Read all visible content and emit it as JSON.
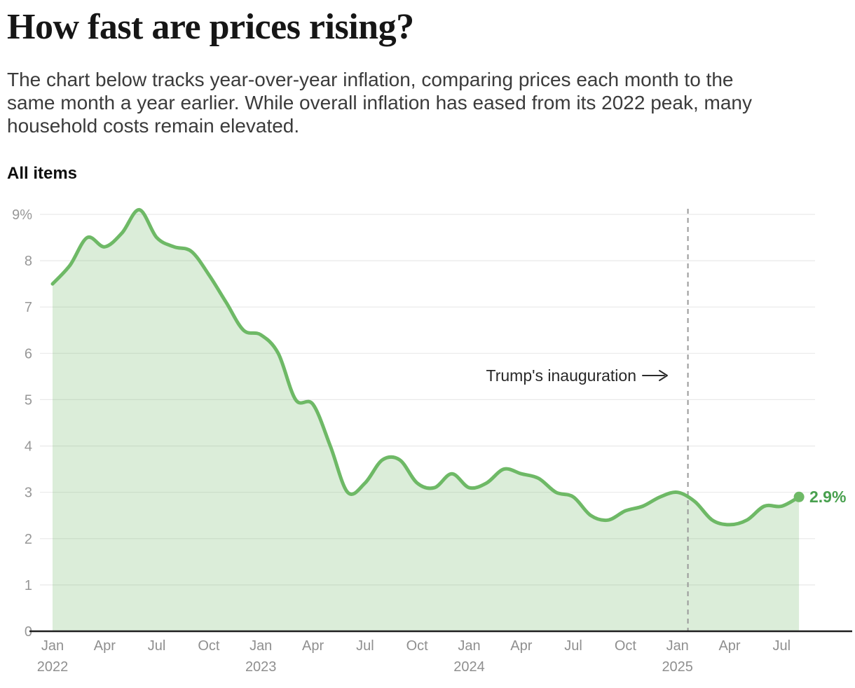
{
  "page": {
    "title": "How fast are prices rising?",
    "subtitle_lines": [
      "The chart below tracks year-over-year inflation, comparing prices each month to the",
      "same month a year earlier. While overall inflation has eased from its 2022 peak, many",
      "household costs remain elevated."
    ]
  },
  "chart_data": {
    "type": "area",
    "title": "All items",
    "unit": "percent, year-over-year",
    "x_monthly_start": "Jan 2022",
    "x_monthly_end": "Aug 2025",
    "series": [
      {
        "name": "All items",
        "values": [
          7.5,
          7.9,
          8.5,
          8.3,
          8.6,
          9.1,
          8.5,
          8.3,
          8.2,
          7.7,
          7.1,
          6.5,
          6.4,
          6.0,
          5.0,
          4.9,
          4.0,
          3.0,
          3.2,
          3.7,
          3.7,
          3.2,
          3.1,
          3.4,
          3.1,
          3.2,
          3.5,
          3.4,
          3.3,
          3.0,
          2.9,
          2.5,
          2.4,
          2.6,
          2.7,
          2.9,
          3.0,
          2.8,
          2.4,
          2.3,
          2.4,
          2.7,
          2.7,
          2.9
        ]
      }
    ],
    "ylim": [
      0,
      9
    ],
    "grid": true,
    "legend": "none",
    "y_ticks": [
      {
        "v": 9,
        "label": "9%"
      },
      {
        "v": 8,
        "label": "8"
      },
      {
        "v": 7,
        "label": "7"
      },
      {
        "v": 6,
        "label": "6"
      },
      {
        "v": 5,
        "label": "5"
      },
      {
        "v": 4,
        "label": "4"
      },
      {
        "v": 3,
        "label": "3"
      },
      {
        "v": 2,
        "label": "2"
      },
      {
        "v": 1,
        "label": "1"
      },
      {
        "v": 0,
        "label": "0"
      }
    ],
    "x_ticks": [
      {
        "i": 0,
        "month": "Jan",
        "year": "2022"
      },
      {
        "i": 3,
        "month": "Apr"
      },
      {
        "i": 6,
        "month": "Jul"
      },
      {
        "i": 9,
        "month": "Oct"
      },
      {
        "i": 12,
        "month": "Jan",
        "year": "2023"
      },
      {
        "i": 15,
        "month": "Apr"
      },
      {
        "i": 18,
        "month": "Jul"
      },
      {
        "i": 21,
        "month": "Oct"
      },
      {
        "i": 24,
        "month": "Jan",
        "year": "2024"
      },
      {
        "i": 27,
        "month": "Apr"
      },
      {
        "i": 30,
        "month": "Jul"
      },
      {
        "i": 33,
        "month": "Oct"
      },
      {
        "i": 36,
        "month": "Jan",
        "year": "2025"
      },
      {
        "i": 39,
        "month": "Apr"
      },
      {
        "i": 42,
        "month": "Jul"
      }
    ],
    "annotation": {
      "label": "Trump's inauguration",
      "vline_month_index": 36.6
    },
    "end_label": "2.9%",
    "colors": {
      "line": "#6eb966",
      "fill": "rgba(110,185,102,0.25)",
      "end_label": "#48a04e",
      "dashed_line": "#9a9a9a",
      "gridline": "#e9e9e9",
      "baseline": "#1f1f1f",
      "axis_text": "#979797"
    }
  }
}
